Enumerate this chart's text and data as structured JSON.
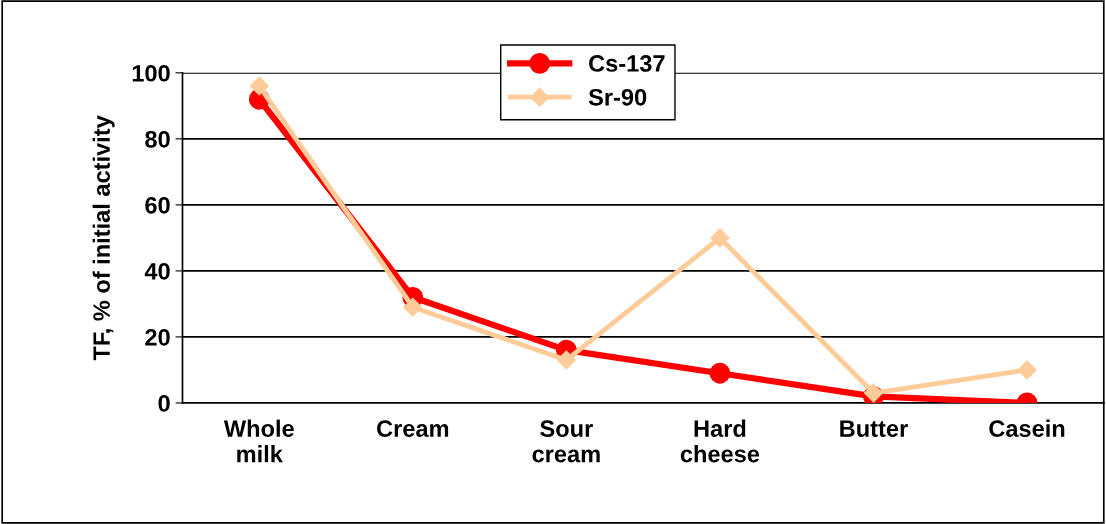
{
  "chart_data": {
    "type": "line",
    "ylabel": "TF, % of initial activity",
    "categories": [
      "Whole\nmilk",
      "Cream",
      "Sour\ncream",
      "Hard\ncheese",
      "Butter",
      "Casein"
    ],
    "series": [
      {
        "name": "Cs-137",
        "color": "#ff0000",
        "marker": "circle",
        "values": [
          92,
          32,
          16,
          9,
          2,
          0
        ]
      },
      {
        "name": "Sr-90",
        "color": "#ffcc99",
        "marker": "diamond",
        "values": [
          96,
          29,
          13,
          50,
          3,
          10
        ]
      }
    ],
    "ylim": [
      0,
      100
    ],
    "yticks": [
      0,
      20,
      40,
      60,
      80,
      100
    ],
    "grid": "y",
    "legend": "top"
  }
}
